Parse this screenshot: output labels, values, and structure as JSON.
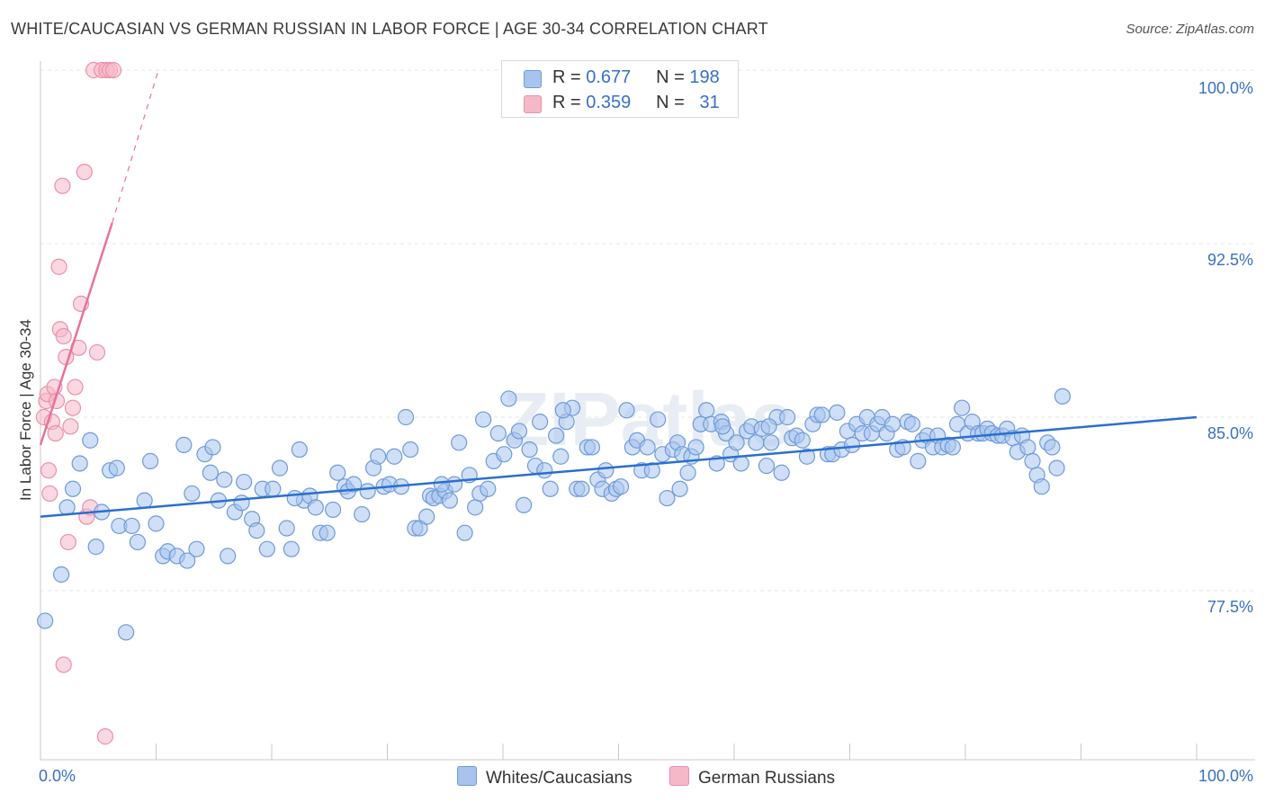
{
  "title": "WHITE/CAUCASIAN VS GERMAN RUSSIAN IN LABOR FORCE | AGE 30-34 CORRELATION CHART",
  "source": "Source: ZipAtlas.com",
  "watermark": "ZIPatlas",
  "legend": {
    "r_label": "R =",
    "n_label": "N =",
    "rows": [
      {
        "r": "0.677",
        "n": "198"
      },
      {
        "r": "0.359",
        "n": "31"
      }
    ]
  },
  "colors": {
    "blue_fill": "#a8c4ee",
    "blue_stroke": "#6f9ad8",
    "blue_line": "#2a6fd0",
    "pink_fill": "#f5b8c9",
    "pink_stroke": "#e990ab",
    "pink_line": "#e8729a",
    "axis_label": "#3a6fc4"
  },
  "chart_data": {
    "type": "scatter",
    "xlabel": "",
    "ylabel": "In Labor Force | Age 30-34",
    "xlim": [
      0,
      100
    ],
    "ylim": [
      71.5,
      100
    ],
    "x_tick_labels": [
      "0.0%",
      "100.0%"
    ],
    "y_ticks": [
      {
        "value": 100,
        "label": "100.0%"
      },
      {
        "value": 92.5,
        "label": "92.5%"
      },
      {
        "value": 85,
        "label": "85.0%"
      },
      {
        "value": 77.5,
        "label": "77.5%"
      }
    ],
    "grid": true,
    "series": [
      {
        "name": "Whites/Caucasians",
        "color": "#a8c4ee",
        "trend": {
          "x": [
            0,
            100
          ],
          "y": [
            80.7,
            85.0
          ]
        },
        "points": [
          [
            0.4,
            76.2
          ],
          [
            1.8,
            78.2
          ],
          [
            2.3,
            81.1
          ],
          [
            2.8,
            81.9
          ],
          [
            3.4,
            83.0
          ],
          [
            4.3,
            84.0
          ],
          [
            4.8,
            79.4
          ],
          [
            5.3,
            80.9
          ],
          [
            6.0,
            82.7
          ],
          [
            6.6,
            82.8
          ],
          [
            6.8,
            80.3
          ],
          [
            7.4,
            75.7
          ],
          [
            7.9,
            80.3
          ],
          [
            8.4,
            79.6
          ],
          [
            9.0,
            81.4
          ],
          [
            9.5,
            83.1
          ],
          [
            10.0,
            80.4
          ],
          [
            10.6,
            79.0
          ],
          [
            11.0,
            79.2
          ],
          [
            11.8,
            79.0
          ],
          [
            12.4,
            83.8
          ],
          [
            12.7,
            78.8
          ],
          [
            13.1,
            81.7
          ],
          [
            13.5,
            79.3
          ],
          [
            14.2,
            83.4
          ],
          [
            14.7,
            82.6
          ],
          [
            14.9,
            83.7
          ],
          [
            15.4,
            81.4
          ],
          [
            15.9,
            82.3
          ],
          [
            16.2,
            79.0
          ],
          [
            16.8,
            80.9
          ],
          [
            17.4,
            81.3
          ],
          [
            17.6,
            82.2
          ],
          [
            18.3,
            80.6
          ],
          [
            18.7,
            80.1
          ],
          [
            19.2,
            81.9
          ],
          [
            19.6,
            79.3
          ],
          [
            20.1,
            81.9
          ],
          [
            20.7,
            82.8
          ],
          [
            21.3,
            80.2
          ],
          [
            21.7,
            79.3
          ],
          [
            22.4,
            83.6
          ],
          [
            22.8,
            81.4
          ],
          [
            23.3,
            81.6
          ],
          [
            23.8,
            81.1
          ],
          [
            24.2,
            80.0
          ],
          [
            24.8,
            80.0
          ],
          [
            25.3,
            81.0
          ],
          [
            25.7,
            82.6
          ],
          [
            26.3,
            82.0
          ],
          [
            26.6,
            81.8
          ],
          [
            27.1,
            82.1
          ],
          [
            27.8,
            80.8
          ],
          [
            28.3,
            81.8
          ],
          [
            28.8,
            82.8
          ],
          [
            29.2,
            83.3
          ],
          [
            29.7,
            82.0
          ],
          [
            30.2,
            82.1
          ],
          [
            30.6,
            83.3
          ],
          [
            31.2,
            82.0
          ],
          [
            31.6,
            85.0
          ],
          [
            32.0,
            83.6
          ],
          [
            32.4,
            80.2
          ],
          [
            32.8,
            80.2
          ],
          [
            33.4,
            80.7
          ],
          [
            33.7,
            81.6
          ],
          [
            34.0,
            81.5
          ],
          [
            34.5,
            81.6
          ],
          [
            35.0,
            81.8
          ],
          [
            35.4,
            81.4
          ],
          [
            35.8,
            82.1
          ],
          [
            36.2,
            83.9
          ],
          [
            36.7,
            80.0
          ],
          [
            37.1,
            82.5
          ],
          [
            37.6,
            81.1
          ],
          [
            38.0,
            81.7
          ],
          [
            38.3,
            84.9
          ],
          [
            38.7,
            81.9
          ],
          [
            39.2,
            83.1
          ],
          [
            39.6,
            84.3
          ],
          [
            40.1,
            83.4
          ],
          [
            40.5,
            85.8
          ],
          [
            41.0,
            84.0
          ],
          [
            41.4,
            84.4
          ],
          [
            41.8,
            81.2
          ],
          [
            42.3,
            83.6
          ],
          [
            42.8,
            82.9
          ],
          [
            43.2,
            84.8
          ],
          [
            43.6,
            82.7
          ],
          [
            44.1,
            81.9
          ],
          [
            44.6,
            84.2
          ],
          [
            45.0,
            83.3
          ],
          [
            45.5,
            84.8
          ],
          [
            46.0,
            85.4
          ],
          [
            46.4,
            81.9
          ],
          [
            46.8,
            81.9
          ],
          [
            47.3,
            83.7
          ],
          [
            47.7,
            83.7
          ],
          [
            48.2,
            82.3
          ],
          [
            48.6,
            81.9
          ],
          [
            48.9,
            82.7
          ],
          [
            49.4,
            81.7
          ],
          [
            49.8,
            81.9
          ],
          [
            50.2,
            82.0
          ],
          [
            50.7,
            85.3
          ],
          [
            51.2,
            83.7
          ],
          [
            51.6,
            84.0
          ],
          [
            52.0,
            82.7
          ],
          [
            52.5,
            83.7
          ],
          [
            52.9,
            82.7
          ],
          [
            53.4,
            84.9
          ],
          [
            53.8,
            83.4
          ],
          [
            54.2,
            81.5
          ],
          [
            54.7,
            83.6
          ],
          [
            55.1,
            83.9
          ],
          [
            55.5,
            83.4
          ],
          [
            56.0,
            82.6
          ],
          [
            56.3,
            83.3
          ],
          [
            56.7,
            83.7
          ],
          [
            57.1,
            84.7
          ],
          [
            57.6,
            85.3
          ],
          [
            58.0,
            84.7
          ],
          [
            58.5,
            83.0
          ],
          [
            58.9,
            84.8
          ],
          [
            59.3,
            84.3
          ],
          [
            59.7,
            83.4
          ],
          [
            60.2,
            83.9
          ],
          [
            60.6,
            83.0
          ],
          [
            61.1,
            84.4
          ],
          [
            61.5,
            84.6
          ],
          [
            61.9,
            83.9
          ],
          [
            62.4,
            84.5
          ],
          [
            62.8,
            82.9
          ],
          [
            63.2,
            83.9
          ],
          [
            63.7,
            85.0
          ],
          [
            64.1,
            82.6
          ],
          [
            64.6,
            85.0
          ],
          [
            65.0,
            84.1
          ],
          [
            65.4,
            84.2
          ],
          [
            65.9,
            84.0
          ],
          [
            66.3,
            83.3
          ],
          [
            66.8,
            84.7
          ],
          [
            67.2,
            85.1
          ],
          [
            67.6,
            85.1
          ],
          [
            68.1,
            83.4
          ],
          [
            68.5,
            83.4
          ],
          [
            68.9,
            85.2
          ],
          [
            69.3,
            83.6
          ],
          [
            69.8,
            84.4
          ],
          [
            70.2,
            83.8
          ],
          [
            70.6,
            84.7
          ],
          [
            71.1,
            84.3
          ],
          [
            71.5,
            85.0
          ],
          [
            71.9,
            84.3
          ],
          [
            72.4,
            84.7
          ],
          [
            72.8,
            85.0
          ],
          [
            73.2,
            84.3
          ],
          [
            73.7,
            84.7
          ],
          [
            74.1,
            83.6
          ],
          [
            74.6,
            83.7
          ],
          [
            75.0,
            84.8
          ],
          [
            75.4,
            84.7
          ],
          [
            75.9,
            83.1
          ],
          [
            76.3,
            84.0
          ],
          [
            76.7,
            84.2
          ],
          [
            77.2,
            83.7
          ],
          [
            77.6,
            84.2
          ],
          [
            78.0,
            83.7
          ],
          [
            78.5,
            83.8
          ],
          [
            78.9,
            83.7
          ],
          [
            79.3,
            84.7
          ],
          [
            79.7,
            85.4
          ],
          [
            80.2,
            84.3
          ],
          [
            80.6,
            84.8
          ],
          [
            81.1,
            84.3
          ],
          [
            81.5,
            84.3
          ],
          [
            81.9,
            84.5
          ],
          [
            82.3,
            84.3
          ],
          [
            82.8,
            84.2
          ],
          [
            83.2,
            84.2
          ],
          [
            83.6,
            84.5
          ],
          [
            84.1,
            84.1
          ],
          [
            84.5,
            83.5
          ],
          [
            84.9,
            84.2
          ],
          [
            85.4,
            83.7
          ],
          [
            85.8,
            83.1
          ],
          [
            86.2,
            82.5
          ],
          [
            86.6,
            82.0
          ],
          [
            87.1,
            83.9
          ],
          [
            87.5,
            83.7
          ],
          [
            87.9,
            82.8
          ],
          [
            88.4,
            85.9
          ],
          [
            34.7,
            82.1
          ],
          [
            59.0,
            84.6
          ],
          [
            45.2,
            85.3
          ],
          [
            55.3,
            81.9
          ],
          [
            63.0,
            84.6
          ],
          [
            22.0,
            81.5
          ]
        ]
      },
      {
        "name": "German Russians",
        "color": "#f5b8c9",
        "trend": {
          "x": [
            0,
            6.2
          ],
          "y": [
            83.8,
            93.4
          ]
        },
        "trend_dashed": {
          "x": [
            6.2,
            10.2
          ],
          "y": [
            93.4,
            100
          ]
        },
        "points": [
          [
            0.3,
            85.0
          ],
          [
            0.5,
            85.7
          ],
          [
            0.6,
            86.0
          ],
          [
            0.7,
            82.7
          ],
          [
            0.8,
            81.7
          ],
          [
            1.0,
            84.8
          ],
          [
            1.2,
            86.3
          ],
          [
            1.3,
            84.3
          ],
          [
            1.4,
            85.7
          ],
          [
            1.6,
            91.5
          ],
          [
            1.7,
            88.8
          ],
          [
            1.9,
            95.0
          ],
          [
            2.0,
            88.5
          ],
          [
            2.2,
            87.6
          ],
          [
            2.4,
            79.6
          ],
          [
            2.6,
            84.6
          ],
          [
            2.8,
            85.4
          ],
          [
            3.0,
            86.3
          ],
          [
            3.3,
            88.0
          ],
          [
            3.5,
            89.9
          ],
          [
            3.8,
            95.6
          ],
          [
            4.0,
            80.7
          ],
          [
            4.3,
            81.1
          ],
          [
            4.6,
            100.0
          ],
          [
            4.9,
            87.8
          ],
          [
            5.3,
            100.0
          ],
          [
            5.7,
            100.0
          ],
          [
            6.0,
            100.0
          ],
          [
            6.3,
            100.0
          ],
          [
            2.0,
            74.3
          ],
          [
            5.6,
            71.2
          ]
        ]
      }
    ]
  },
  "bottom_legend": [
    {
      "label": "Whites/Caucasians"
    },
    {
      "label": "German Russians"
    }
  ]
}
